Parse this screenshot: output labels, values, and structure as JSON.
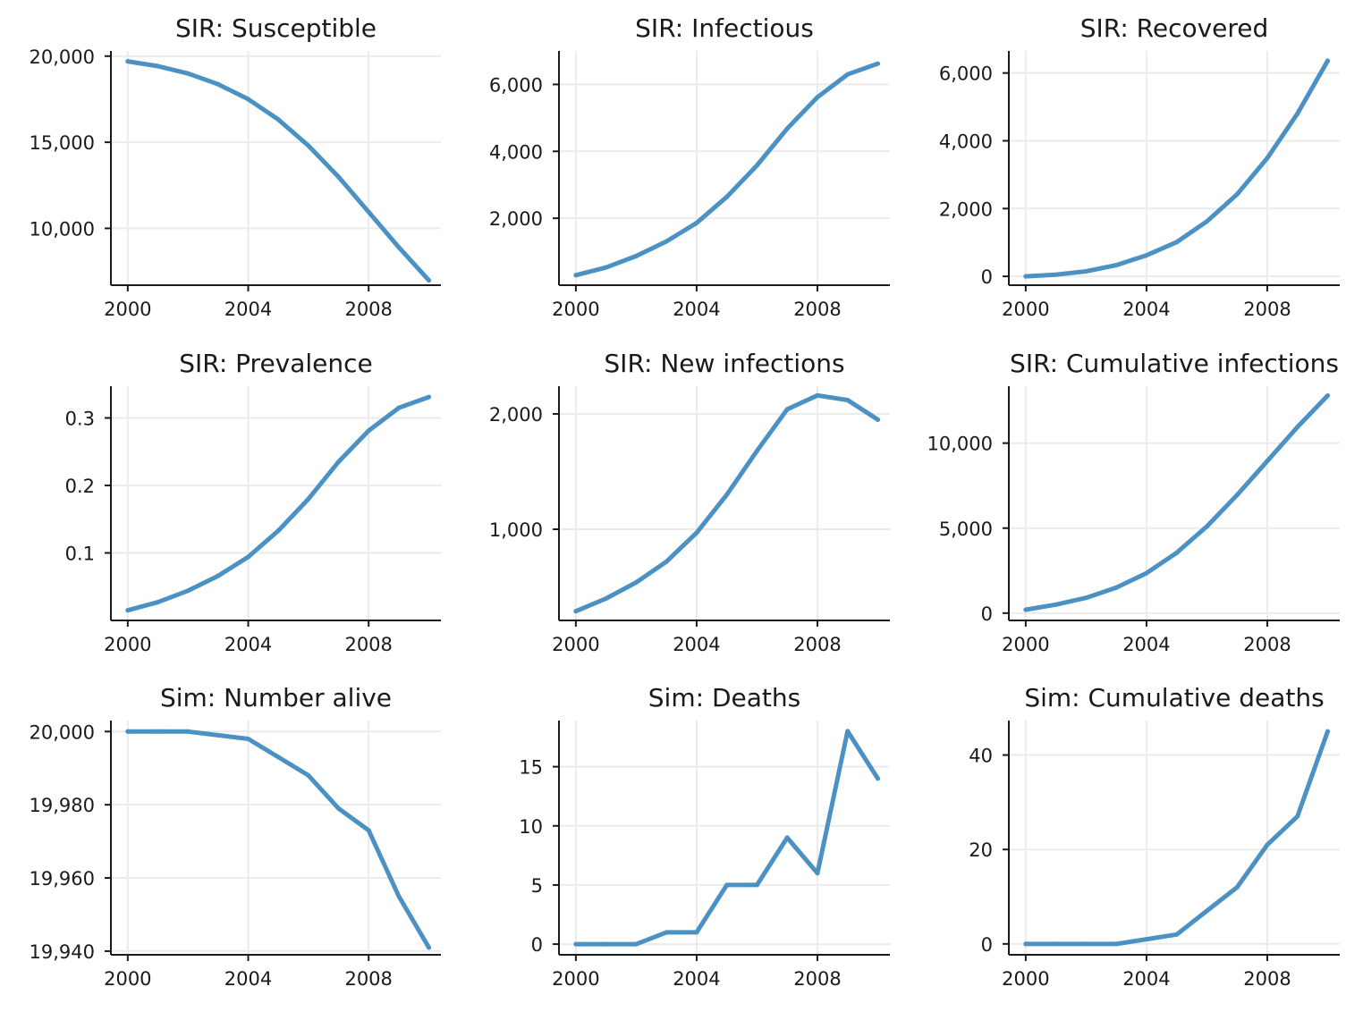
{
  "colors": {
    "series": "#4b91c3"
  },
  "chart_data": [
    {
      "type": "line",
      "title": "SIR: Susceptible",
      "x": [
        2000,
        2001,
        2002,
        2003,
        2004,
        2005,
        2006,
        2007,
        2008,
        2009,
        2010
      ],
      "y": [
        19700,
        19420,
        18990,
        18370,
        17500,
        16320,
        14800,
        12990,
        10950,
        8900,
        6980
      ],
      "ylim": [
        6700,
        20300
      ],
      "yticks": [
        10000,
        15000,
        20000
      ],
      "ytick_labels": [
        "10,000",
        "15,000",
        "20,000"
      ],
      "xlim": [
        1999.5,
        2010.4
      ],
      "xticks": [
        2000,
        2004,
        2008
      ],
      "xtick_labels": [
        "2000",
        "2004",
        "2008"
      ],
      "grid": true
    },
    {
      "type": "line",
      "title": "SIR: Infectious",
      "x": [
        2000,
        2001,
        2002,
        2003,
        2004,
        2005,
        2006,
        2007,
        2008,
        2009,
        2010
      ],
      "y": [
        300,
        530,
        870,
        1310,
        1860,
        2640,
        3580,
        4680,
        5620,
        6300,
        6620
      ],
      "ylim": [
        0,
        7000
      ],
      "yticks": [
        2000,
        4000,
        6000
      ],
      "ytick_labels": [
        "2,000",
        "4,000",
        "6,000"
      ],
      "xlim": [
        1999.5,
        2010.4
      ],
      "xticks": [
        2000,
        2004,
        2008
      ],
      "xtick_labels": [
        "2000",
        "2004",
        "2008"
      ],
      "grid": true
    },
    {
      "type": "line",
      "title": "SIR: Recovered",
      "x": [
        2000,
        2001,
        2002,
        2003,
        2004,
        2005,
        2006,
        2007,
        2008,
        2009,
        2010
      ],
      "y": [
        0,
        50,
        150,
        330,
        620,
        1010,
        1620,
        2420,
        3490,
        4800,
        6360
      ],
      "ylim": [
        -260,
        6650
      ],
      "yticks": [
        0,
        2000,
        4000,
        6000
      ],
      "ytick_labels": [
        "0",
        "2,000",
        "4,000",
        "6,000"
      ],
      "xlim": [
        1999.5,
        2010.4
      ],
      "xticks": [
        2000,
        2004,
        2008
      ],
      "xtick_labels": [
        "2000",
        "2004",
        "2008"
      ],
      "grid": true
    },
    {
      "type": "line",
      "title": "SIR: Prevalence",
      "x": [
        2000,
        2001,
        2002,
        2003,
        2004,
        2005,
        2006,
        2007,
        2008,
        2009,
        2010
      ],
      "y": [
        0.015,
        0.027,
        0.044,
        0.066,
        0.094,
        0.133,
        0.18,
        0.235,
        0.281,
        0.315,
        0.331
      ],
      "ylim": [
        0.0,
        0.347
      ],
      "yticks": [
        0.1,
        0.2,
        0.3
      ],
      "ytick_labels": [
        "0.1",
        "0.2",
        "0.3"
      ],
      "xlim": [
        1999.5,
        2010.4
      ],
      "xticks": [
        2000,
        2004,
        2008
      ],
      "xtick_labels": [
        "2000",
        "2004",
        "2008"
      ],
      "grid": true
    },
    {
      "type": "line",
      "title": "SIR: New infections",
      "x": [
        2000,
        2001,
        2002,
        2003,
        2004,
        2005,
        2006,
        2007,
        2008,
        2009,
        2010
      ],
      "y": [
        290,
        400,
        540,
        720,
        970,
        1300,
        1680,
        2040,
        2160,
        2120,
        1950
      ],
      "ylim": [
        210,
        2240
      ],
      "yticks": [
        1000,
        2000
      ],
      "ytick_labels": [
        "1,000",
        "2,000"
      ],
      "xlim": [
        1999.5,
        2010.4
      ],
      "xticks": [
        2000,
        2004,
        2008
      ],
      "xtick_labels": [
        "2000",
        "2004",
        "2008"
      ],
      "grid": true
    },
    {
      "type": "line",
      "title": "SIR: Cumulative infections",
      "x": [
        2000,
        2001,
        2002,
        2003,
        2004,
        2005,
        2006,
        2007,
        2008,
        2009,
        2010
      ],
      "y": [
        200,
        500,
        900,
        1500,
        2350,
        3550,
        5100,
        6950,
        8950,
        10950,
        12800
      ],
      "ylim": [
        -430,
        13350
      ],
      "yticks": [
        0,
        5000,
        10000
      ],
      "ytick_labels": [
        "0",
        "5,000",
        "10,000"
      ],
      "xlim": [
        1999.5,
        2010.4
      ],
      "xticks": [
        2000,
        2004,
        2008
      ],
      "xtick_labels": [
        "2000",
        "2004",
        "2008"
      ],
      "grid": true
    },
    {
      "type": "line",
      "title": "Sim: Number alive",
      "x": [
        2000,
        2001,
        2002,
        2003,
        2004,
        2005,
        2006,
        2007,
        2008,
        2009,
        2010
      ],
      "y": [
        20000,
        20000,
        20000,
        19999,
        19998,
        19993,
        19988,
        19979,
        19973,
        19955,
        19941
      ],
      "ylim": [
        19939,
        20003
      ],
      "yticks": [
        19940,
        19960,
        19980,
        20000
      ],
      "ytick_labels": [
        "19,940",
        "19,960",
        "19,980",
        "20,000"
      ],
      "xlim": [
        1999.5,
        2010.4
      ],
      "xticks": [
        2000,
        2004,
        2008
      ],
      "xtick_labels": [
        "2000",
        "2004",
        "2008"
      ],
      "grid": true
    },
    {
      "type": "line",
      "title": "Sim: Deaths",
      "x": [
        2000,
        2001,
        2002,
        2003,
        2004,
        2005,
        2006,
        2007,
        2008,
        2009,
        2010
      ],
      "y": [
        0,
        0,
        0,
        1,
        1,
        5,
        5,
        9,
        6,
        18,
        14
      ],
      "ylim": [
        -0.9,
        18.9
      ],
      "yticks": [
        0,
        5,
        10,
        15
      ],
      "ytick_labels": [
        "0",
        "5",
        "10",
        "15"
      ],
      "xlim": [
        1999.5,
        2010.4
      ],
      "xticks": [
        2000,
        2004,
        2008
      ],
      "xtick_labels": [
        "2000",
        "2004",
        "2008"
      ],
      "grid": true
    },
    {
      "type": "line",
      "title": "Sim: Cumulative deaths",
      "x": [
        2000,
        2001,
        2002,
        2003,
        2004,
        2005,
        2006,
        2007,
        2008,
        2009,
        2010
      ],
      "y": [
        0,
        0,
        0,
        0,
        1,
        2,
        7,
        12,
        21,
        27,
        45
      ],
      "ylim": [
        -2.3,
        47.3
      ],
      "yticks": [
        0,
        20,
        40
      ],
      "ytick_labels": [
        "0",
        "20",
        "40"
      ],
      "xlim": [
        1999.5,
        2010.4
      ],
      "xticks": [
        2000,
        2004,
        2008
      ],
      "xtick_labels": [
        "2000",
        "2004",
        "2008"
      ],
      "grid": true
    }
  ]
}
